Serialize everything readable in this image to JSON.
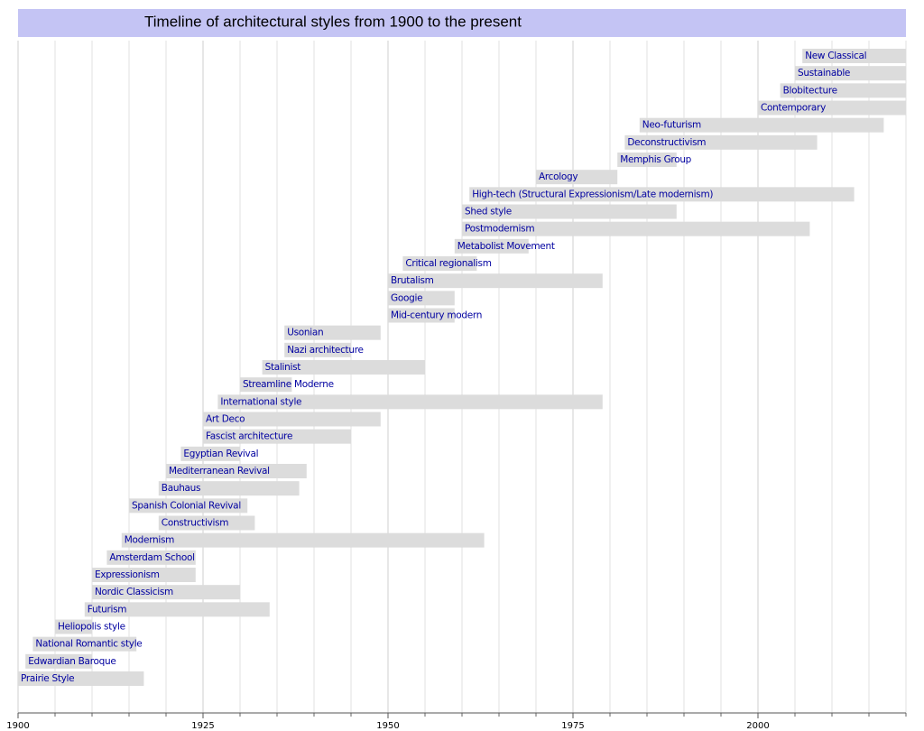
{
  "chart_data": {
    "type": "timeline",
    "title": "Timeline of architectural styles from 1900 to the present",
    "categories": [
      "New Classical",
      "Sustainable",
      "Blobitecture",
      "Contemporary",
      "Neo-futurism",
      "Deconstructivism",
      "Memphis Group",
      "Arcology",
      "High-tech (Structural Expressionism/Late modernism)",
      "Shed style",
      "Postmodernism",
      "Metabolist Movement",
      "Critical regionalism",
      "Brutalism",
      "Googie",
      "Mid-century modern",
      "Usonian",
      "Nazi architecture",
      "Stalinist",
      "Streamline Moderne",
      "International style",
      "Art Deco",
      "Fascist architecture",
      "Egyptian Revival",
      "Mediterranean Revival",
      "Bauhaus",
      "Spanish Colonial Revival",
      "Constructivism",
      "Modernism",
      "Amsterdam School",
      "Expressionism",
      "Nordic Classicism",
      "Futurism",
      "Heliopolis style",
      "National Romantic style",
      "Edwardian Baroque",
      "Prairie Style"
    ],
    "start": [
      2006,
      2005,
      2003,
      2000,
      1984,
      1982,
      1981,
      1970,
      1961,
      1960,
      1960,
      1959,
      1952,
      1950,
      1950,
      1950,
      1936,
      1936,
      1933,
      1930,
      1927,
      1925,
      1925,
      1922,
      1920,
      1919,
      1915,
      1919,
      1914,
      1912,
      1910,
      1910,
      1909,
      1905,
      1902,
      1901,
      1900
    ],
    "end": [
      2020,
      2020,
      2020,
      2020,
      2017,
      2008,
      1989,
      1981,
      2013,
      1989,
      2007,
      1969,
      1962,
      1979,
      1959,
      1959,
      1949,
      1945,
      1955,
      1937,
      1979,
      1949,
      1945,
      1930,
      1939,
      1938,
      1931,
      1932,
      1963,
      1924,
      1924,
      1930,
      1934,
      1910,
      1916,
      1910,
      1917
    ],
    "color": "#dcdcdc",
    "label_color": "#0000a0",
    "xlim": [
      1900,
      2020
    ],
    "xticks": [
      1900,
      1925,
      1950,
      1975,
      2000
    ],
    "minor_xticks": [
      1905,
      1910,
      1915,
      1920,
      1930,
      1935,
      1940,
      1945,
      1955,
      1960,
      1965,
      1970,
      1980,
      1985,
      1990,
      1995,
      2005,
      2010,
      2015,
      2020
    ],
    "grid": true
  }
}
